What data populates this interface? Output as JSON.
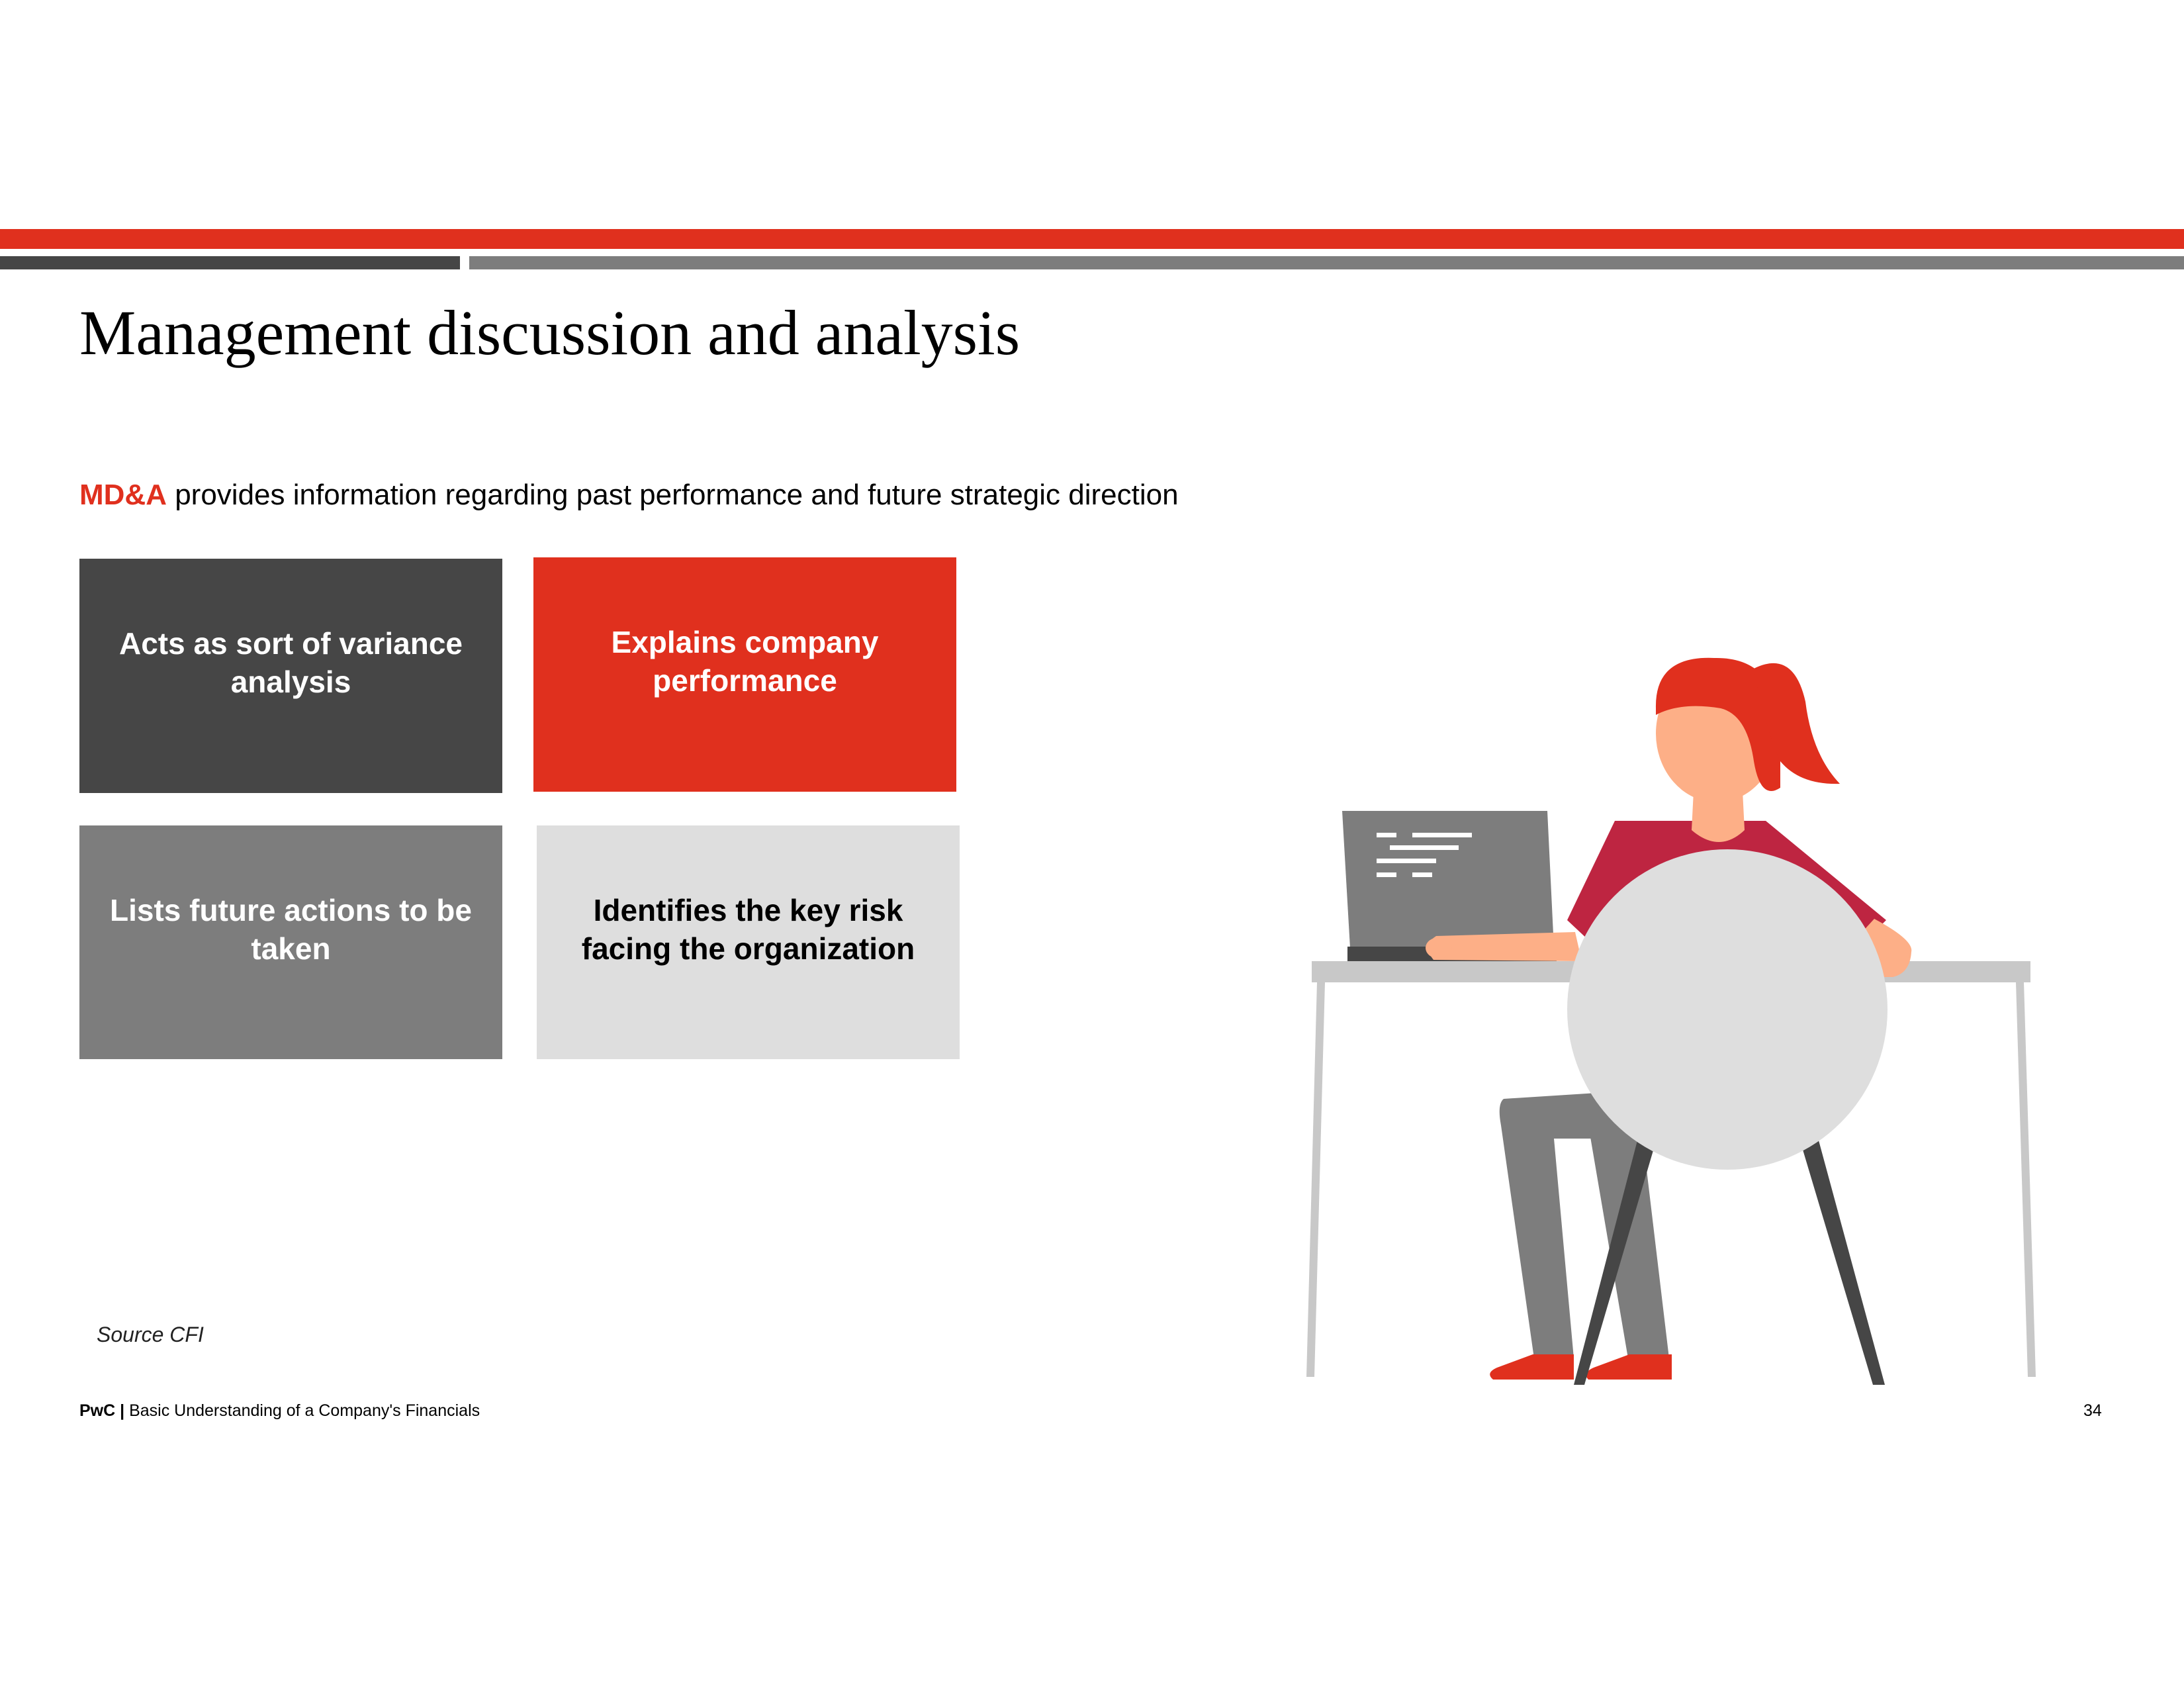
{
  "header": {
    "title": "Management discussion and analysis"
  },
  "intro": {
    "accent": "MD&A",
    "text": " provides information regarding past performance and future strategic direction"
  },
  "boxes": [
    {
      "label": "Acts as sort of variance analysis",
      "color": "#464646"
    },
    {
      "label": "Explains company performance",
      "color": "#e0301e"
    },
    {
      "label": "Lists future actions to be taken",
      "color": "#7d7d7d"
    },
    {
      "label": "Identifies the key risk facing the organization",
      "color": "#dedede"
    }
  ],
  "source": "Source CFI",
  "footer": {
    "brand": "PwC",
    "separator": " | ",
    "text": "Basic Understanding of a Company's Financials",
    "page": "34"
  },
  "colors": {
    "accent_red": "#e0301e",
    "dark_gray": "#464646",
    "mid_gray": "#7d7d7d",
    "light_gray": "#dedede"
  },
  "illustration": {
    "icon": "person-at-laptop-illustration"
  }
}
